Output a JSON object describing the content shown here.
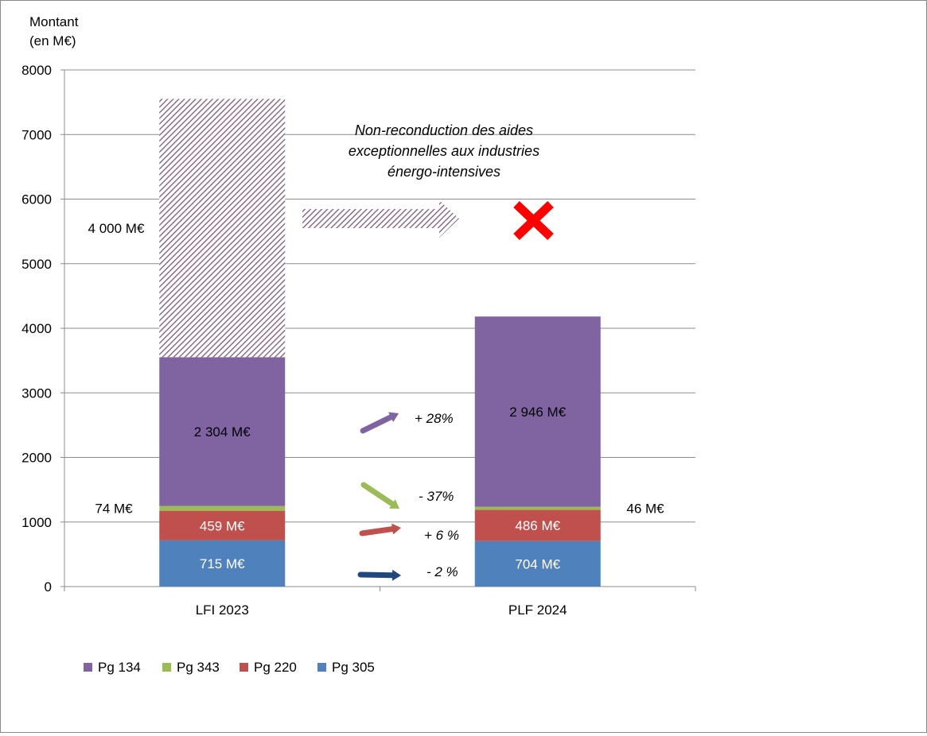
{
  "chart_data": {
    "type": "bar",
    "stacked": true,
    "ylabel": "Montant\n(en M€)",
    "ylim": [
      0,
      8000
    ],
    "yticks": [
      0,
      1000,
      2000,
      3000,
      4000,
      5000,
      6000,
      7000,
      8000
    ],
    "grid": true,
    "legend_position": "bottom-left",
    "categories": [
      "LFI 2023",
      "PLF 2024"
    ],
    "series": [
      {
        "name": "Pg 305",
        "color": "#4f81bd",
        "values": [
          715,
          704
        ],
        "labels": [
          "715 M€",
          "704 M€"
        ]
      },
      {
        "name": "Pg 220",
        "color": "#c0504d",
        "values": [
          459,
          486
        ],
        "labels": [
          "459 M€",
          "486 M€"
        ]
      },
      {
        "name": "Pg 343",
        "color": "#9bbb59",
        "values": [
          74,
          46
        ],
        "labels": [
          "74 M€",
          "46 M€"
        ]
      },
      {
        "name": "Pg 134",
        "color": "#8064a2",
        "values": [
          2304,
          2946
        ],
        "labels": [
          "2 304 M€",
          "2 946 M€"
        ]
      }
    ],
    "exceptional": {
      "value": 4000,
      "category": "LFI 2023",
      "label": "4 000 M€",
      "pattern_color": "#7a5a75"
    },
    "legend_order": [
      "Pg 134",
      "Pg 343",
      "Pg 220",
      "Pg 305"
    ],
    "annotation": "Non-reconduction des aides\nexceptionnelles aux industries\nénergo-intensives",
    "changes": [
      {
        "series": "Pg 134",
        "label": "+ 28%",
        "direction": "up",
        "color": "#8064a2"
      },
      {
        "series": "Pg 343",
        "label": "- 37%",
        "direction": "down",
        "color": "#9bbb59"
      },
      {
        "series": "Pg 220",
        "label": "+ 6 %",
        "direction": "slight-up",
        "color": "#c0504d"
      },
      {
        "series": "Pg 305",
        "label": "- 2 %",
        "direction": "flat",
        "color": "#1f497d"
      }
    ],
    "cross_color": "#ff0000"
  }
}
